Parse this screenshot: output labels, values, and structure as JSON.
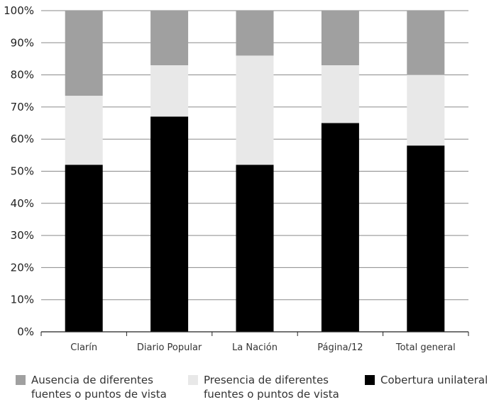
{
  "chart_data": {
    "type": "bar",
    "stacked": true,
    "categories": [
      "Clarín",
      "Diario Popular",
      "La Nación",
      "Página/12",
      "Total general"
    ],
    "series": [
      {
        "name": "Cobertura unilateral",
        "color": "#000000",
        "values": [
          52,
          67,
          52,
          65,
          58
        ]
      },
      {
        "name": "Presencia de diferentes fuentes o puntos de vista",
        "color": "#e8e8e8",
        "values": [
          21.5,
          16,
          34,
          18,
          22
        ]
      },
      {
        "name": "Ausencia de diferentes fuentes o puntos de vista",
        "color": "#a0a0a0",
        "values": [
          26.5,
          17,
          14,
          17,
          20
        ]
      }
    ],
    "yticks": [
      "0%",
      "10%",
      "20%",
      "30%",
      "40%",
      "50%",
      "60%",
      "70%",
      "80%",
      "90%",
      "100%"
    ],
    "ylim": [
      0,
      100
    ],
    "grid": true,
    "legend_position": "bottom",
    "title": "",
    "xlabel": "",
    "ylabel": ""
  },
  "legend": {
    "items": [
      {
        "label": "Ausencia de diferentes fuentes o puntos de vista",
        "color": "#a0a0a0"
      },
      {
        "label": "Presencia de diferentes fuentes o puntos de vista",
        "color": "#e8e8e8"
      },
      {
        "label": "Cobertura unilateral",
        "color": "#000000"
      }
    ]
  }
}
